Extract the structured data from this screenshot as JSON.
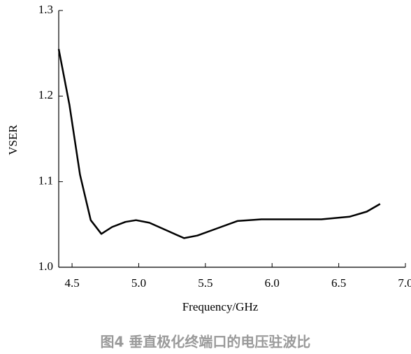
{
  "chart_data": {
    "type": "line",
    "xlabel": "Frequency/GHz",
    "ylabel": "VSER",
    "caption": "图4 垂直极化终端口的电压驻波比",
    "x": [
      4.4,
      4.48,
      4.56,
      4.64,
      4.72,
      4.8,
      4.9,
      4.98,
      5.08,
      5.21,
      5.34,
      5.44,
      5.58,
      5.74,
      5.92,
      6.16,
      6.37,
      6.58,
      6.71,
      6.81
    ],
    "series": [
      {
        "color": "#000000",
        "values": [
          1.255,
          1.19,
          1.108,
          1.055,
          1.039,
          1.047,
          1.053,
          1.055,
          1.052,
          1.043,
          1.034,
          1.037,
          1.045,
          1.054,
          1.056,
          1.056,
          1.056,
          1.059,
          1.065,
          1.074
        ]
      }
    ],
    "xlim": [
      4.4,
      7.0
    ],
    "xticks": [
      4.5,
      {
        "value": 5,
        "label": "5.0"
      },
      5.5,
      {
        "value": 6,
        "label": "6.0"
      },
      6.5,
      {
        "value": 7,
        "label": "7.0"
      }
    ],
    "ylim": [
      1.0,
      1.3
    ],
    "yticks": [
      {
        "value": 1,
        "label": "1.0"
      },
      1.1,
      1.2,
      1.3
    ],
    "grid": false
  }
}
